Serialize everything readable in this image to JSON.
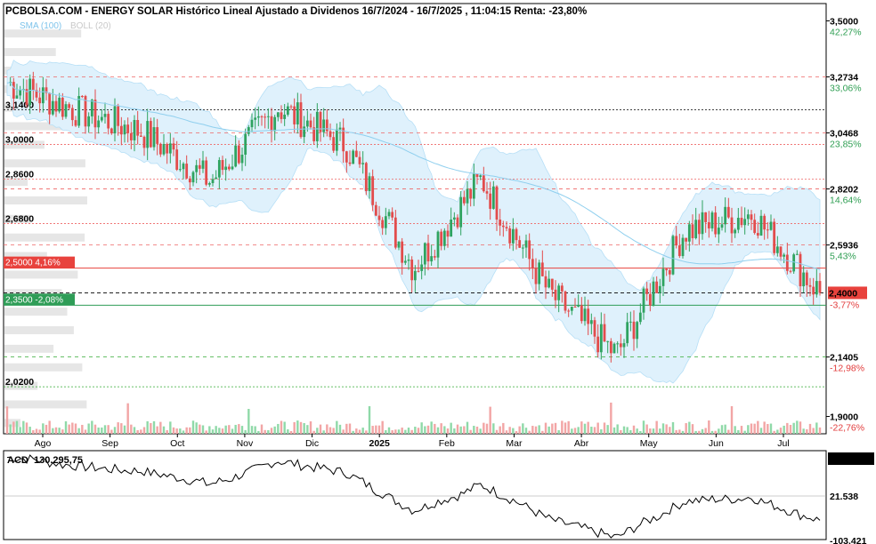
{
  "chart_data": {
    "type": "candlestick",
    "title": "PCBOLSA.COM - ENERGY SOLAR Histórico Lineal Ajustado a Dividenos 16/7/2024 - 16/7/2025 , 11:04:15 Renta: -23,80%",
    "indicators_label": {
      "sma": "SMA (100)",
      "boll": "BOLL (20)"
    },
    "y_axis": {
      "ticks": [
        {
          "value": 3.5,
          "label": "3,5000",
          "pct": "42,27%",
          "dir": "up"
        },
        {
          "value": 3.2734,
          "label": "3,2734",
          "pct": "33,06%",
          "dir": "up"
        },
        {
          "value": 3.0468,
          "label": "3,0468",
          "pct": "23,85%",
          "dir": "up"
        },
        {
          "value": 2.8202,
          "label": "2,8202",
          "pct": "14,64%",
          "dir": "up"
        },
        {
          "value": 2.5936,
          "label": "2,5936",
          "pct": "5,43%",
          "dir": "up"
        },
        {
          "value": 2.1405,
          "label": "2,1405",
          "pct": "-12,98%",
          "dir": "dn"
        },
        {
          "value": 1.9,
          "label": "1,9000",
          "pct": "-22,76%",
          "dir": "dn"
        }
      ],
      "range": [
        1.83,
        3.57
      ]
    },
    "x_axis": {
      "labels": [
        "Ago",
        "Sep",
        "Oct",
        "Nov",
        "Dic",
        "2025",
        "Feb",
        "Mar",
        "Abr",
        "May",
        "Jun",
        "Jul"
      ],
      "bold_label": "2025"
    },
    "current": {
      "value": 2.4,
      "label": "2,4000",
      "pct": "-3,77%"
    },
    "levels_left": [
      {
        "value": 3.14,
        "label": "3,1400"
      },
      {
        "value": 3.0,
        "label": "3,0000"
      },
      {
        "value": 2.86,
        "label": "2,8600"
      },
      {
        "value": 2.68,
        "label": "2,6800"
      },
      {
        "value": 2.02,
        "label": "2,0200"
      }
    ],
    "box_levels": [
      {
        "value": 2.5,
        "label": "2,5000",
        "pct": "4,16%",
        "color": "#e8423d"
      },
      {
        "value": 2.35,
        "label": "2,3500",
        "pct": "-2,08%",
        "color": "#2f9d57"
      }
    ],
    "monthly_closes": [
      {
        "month": "Jul",
        "value": 3.25
      },
      {
        "month": "Ago",
        "value": 3.14
      },
      {
        "month": "Sep",
        "value": 3.05
      },
      {
        "month": "Oct",
        "value": 2.85
      },
      {
        "month": "Nov",
        "value": 3.15
      },
      {
        "month": "Dic",
        "value": 3.0
      },
      {
        "month": "Ene",
        "value": 2.5
      },
      {
        "month": "Feb",
        "value": 2.86
      },
      {
        "month": "Mar",
        "value": 2.4
      },
      {
        "month": "Abr",
        "value": 2.15
      },
      {
        "month": "May",
        "value": 2.65
      },
      {
        "month": "Jun",
        "value": 2.72
      },
      {
        "month": "Jul",
        "value": 2.4
      }
    ],
    "acd": {
      "label": "ACD",
      "value_label": "130.295,75",
      "right_label": "130.295",
      "mid_label": "21.538",
      "bottom_label": "-103.421"
    }
  }
}
